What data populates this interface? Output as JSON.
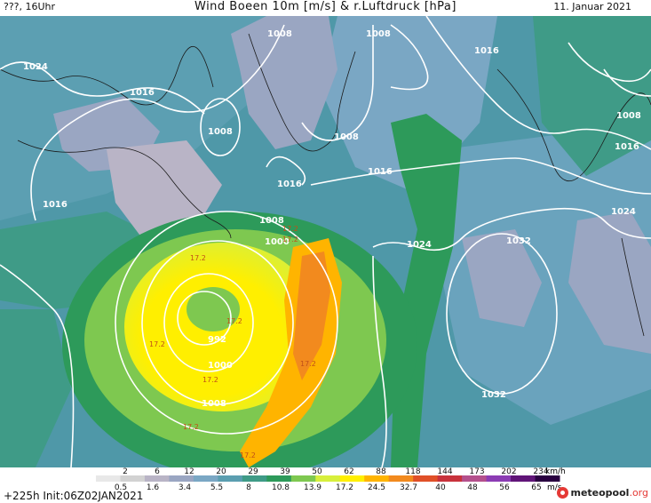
{
  "header": {
    "left": "???, 16Uhr",
    "title": "Wind Boeen 10m [m/s] & r.Luftdruck [hPa]",
    "date": "11. Januar 2021"
  },
  "isobars": [
    "1008",
    "1024",
    "1016",
    "1008",
    "1008",
    "1016",
    "1016",
    "1008",
    "1016",
    "1016",
    "1008",
    "1000",
    "1024",
    "1032",
    "992",
    "1000",
    "1008",
    "1032",
    "1024",
    "1016",
    "1008"
  ],
  "gust_labels": [
    "17.2",
    "17.2",
    "17.2",
    "17.2",
    "17.2",
    "17.2",
    "17.2",
    "17.2",
    "17.2"
  ],
  "legend": {
    "kmh": [
      "2",
      "6",
      "12",
      "20",
      "29",
      "39",
      "50",
      "62",
      "88",
      "118",
      "144",
      "173",
      "202",
      "234"
    ],
    "kmh_unit": "km/h",
    "ms": [
      "0.5",
      "1.6",
      "3.4",
      "5.5",
      "8",
      "10.8",
      "13.9",
      "17.2",
      "24.5",
      "32.7",
      "40",
      "48",
      "56",
      "65"
    ],
    "ms_unit": "m/s",
    "colors": [
      "#e8e8e8",
      "#d2d2d2",
      "#b9b4c6",
      "#9aa6c2",
      "#7aa7c4",
      "#5b9eb0",
      "#3f9b87",
      "#2d9a5a",
      "#7ec850",
      "#d7ef3c",
      "#ffef00",
      "#ffb400",
      "#f28a1e",
      "#e05028",
      "#c8323c",
      "#b4508c",
      "#8c3cb4",
      "#601478",
      "#2a0040"
    ]
  },
  "run_info": "+225h  Init:06Z02JAN2021",
  "logo": {
    "name": "meteopool",
    "tld": ".org"
  }
}
